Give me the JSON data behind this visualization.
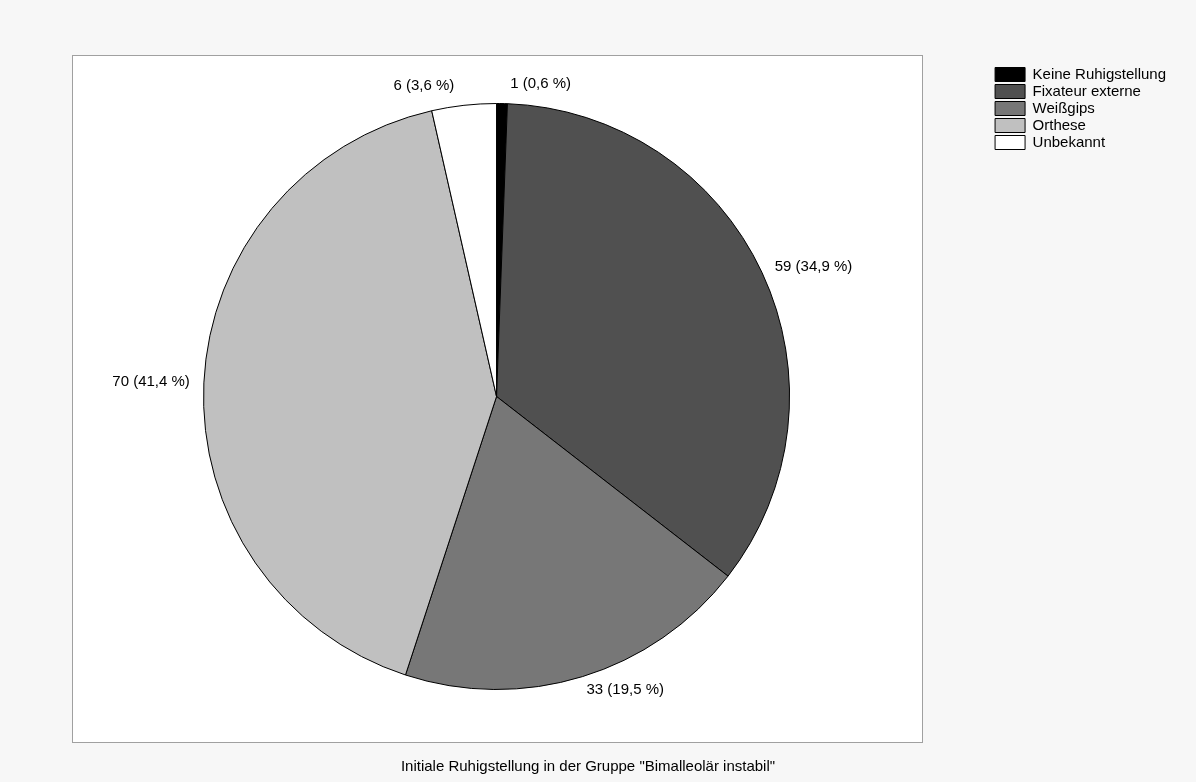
{
  "chart_data": {
    "type": "pie",
    "title": "Initiale Ruhigstellung in der Gruppe \"Bimalleolär instabil\"",
    "categories": [
      "Keine Ruhigstellung",
      "Fixateur externe",
      "Weißgips",
      "Orthese",
      "Unbekannt"
    ],
    "values": [
      1,
      59,
      33,
      70,
      6
    ],
    "colors": [
      "#000000",
      "#505050",
      "#777777",
      "#c0c0c0",
      "#ffffff"
    ],
    "value_labels": [
      "1 (0,6 %)",
      "59 (34,9 %)",
      "33 (19,5 %)",
      "70 (41,4 %)",
      "6 (3,6 %)"
    ],
    "legend": "top right"
  }
}
